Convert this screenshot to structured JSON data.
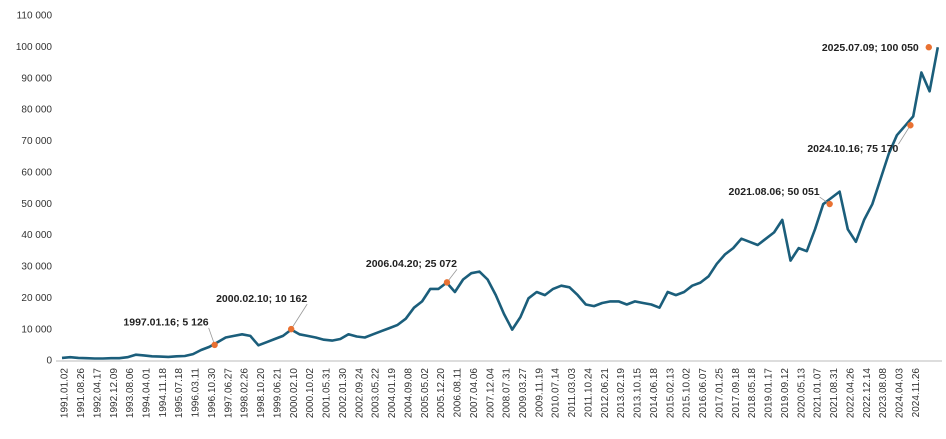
{
  "chart_data": {
    "type": "line",
    "categories": [
      "1991.01.02",
      null,
      "1991.08.26",
      null,
      "1992.04.17",
      null,
      "1992.12.09",
      null,
      "1993.08.06",
      null,
      "1994.04.01",
      null,
      "1994.11.18",
      null,
      "1995.07.18",
      null,
      "1996.03.11",
      null,
      "1996.10.30",
      null,
      "1997.06.27",
      null,
      "1998.02.26",
      null,
      "1998.10.20",
      null,
      "1999.06.21",
      null,
      "2000.02.10",
      null,
      "2000.10.02",
      null,
      "2001.05.31",
      null,
      "2002.01.30",
      null,
      "2002.09.24",
      null,
      "2003.05.22",
      null,
      "2004.01.19",
      null,
      "2004.09.08",
      null,
      "2005.05.02",
      null,
      "2005.12.20",
      null,
      "2006.08.11",
      null,
      "2007.04.06",
      null,
      "2007.12.04",
      null,
      "2008.07.31",
      null,
      "2009.03.27",
      null,
      "2009.11.19",
      null,
      "2010.07.14",
      null,
      "2011.03.03",
      null,
      "2011.10.24",
      null,
      "2012.06.21",
      null,
      "2013.02.19",
      null,
      "2013.10.15",
      null,
      "2014.06.18",
      null,
      "2015.02.13",
      null,
      "2015.10.02",
      null,
      "2016.06.07",
      null,
      "2017.01.25",
      null,
      "2017.09.18",
      null,
      "2018.05.18",
      null,
      "2019.01.17",
      null,
      "2019.09.12",
      null,
      "2020.05.13",
      null,
      "2021.01.07",
      null,
      "2021.08.31",
      null,
      "2022.04.26",
      null,
      "2022.12.14",
      null,
      "2023.08.08",
      null,
      "2024.04.03",
      null,
      "2024.11.26",
      null,
      null,
      null
    ],
    "series": [
      {
        "color": "#1b5e7b",
        "values": [
          1000,
          1200,
          1000,
          900,
          800,
          800,
          900,
          900,
          1200,
          2000,
          1800,
          1500,
          1400,
          1300,
          1500,
          1600,
          2200,
          3500,
          4500,
          6000,
          7500,
          8000,
          8500,
          8000,
          5000,
          6000,
          7000,
          8000,
          10000,
          8500,
          8000,
          7500,
          6800,
          6500,
          7000,
          8500,
          7800,
          7500,
          8500,
          9500,
          10500,
          11500,
          13500,
          17000,
          19000,
          23000,
          23000,
          25000,
          22000,
          26000,
          28000,
          28500,
          26000,
          21000,
          15000,
          10000,
          14000,
          20000,
          22000,
          21000,
          23000,
          24000,
          23500,
          21000,
          18000,
          17500,
          18500,
          19000,
          19000,
          18000,
          19000,
          18500,
          18000,
          17000,
          22000,
          21000,
          22000,
          24000,
          25000,
          27000,
          31000,
          34000,
          36000,
          39000,
          38000,
          37000,
          39000,
          41000,
          45000,
          32000,
          36000,
          35000,
          42000,
          50000,
          52000,
          54000,
          42000,
          38000,
          45000,
          50000,
          58000,
          66000,
          72000,
          75000,
          78000,
          92000,
          86000,
          100050
        ]
      }
    ],
    "annotations": [
      {
        "label": "1997.01.16; 5 126",
        "date": "1997.01.16",
        "value": 5126,
        "color": "#e97132"
      },
      {
        "label": "2000.02.10; 10 162",
        "date": "2000.02.10",
        "value": 10162,
        "color": "#e97132"
      },
      {
        "label": "2006.04.20; 25 072",
        "date": "2006.04.20",
        "value": 25072,
        "color": "#e97132"
      },
      {
        "label": "2021.08.06; 50 051",
        "date": "2021.08.06",
        "value": 50051,
        "color": "#e97132"
      },
      {
        "label": "2024.10.16; 75 170",
        "date": "2024.10.16",
        "value": 75170,
        "color": "#e97132"
      },
      {
        "label": "2025.07.09; 100 050",
        "date": "2025.07.09",
        "value": 100050,
        "color": "#e97132"
      }
    ],
    "ylim": [
      0,
      110000
    ],
    "yticks": [
      0,
      {
        "value": 10000,
        "label": "10 000"
      },
      {
        "value": 20000,
        "label": "20 000"
      },
      {
        "value": 30000,
        "label": "30 000"
      },
      {
        "value": 40000,
        "label": "40 000"
      },
      {
        "value": 50000,
        "label": "50 000"
      },
      {
        "value": 60000,
        "label": "60 000"
      },
      {
        "value": 70000,
        "label": "70 000"
      },
      {
        "value": 80000,
        "label": "80 000"
      },
      {
        "value": 90000,
        "label": "90 000"
      },
      {
        "value": 100000,
        "label": "100 000"
      },
      {
        "value": 110000,
        "label": "110 000"
      }
    ],
    "grid": false
  }
}
